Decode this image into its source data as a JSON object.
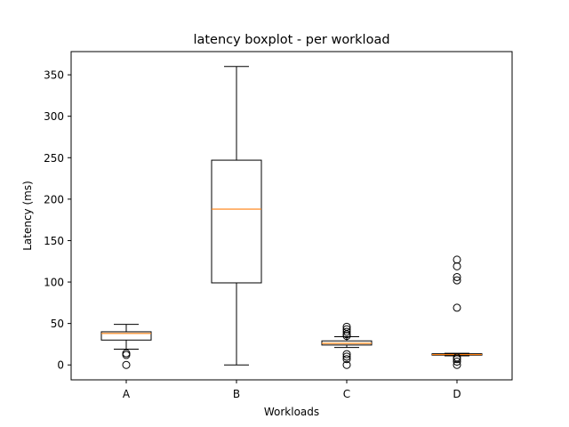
{
  "chart_data": {
    "type": "boxplot",
    "title": "latency boxplot - per workload",
    "xlabel": "Workloads",
    "ylabel": "Latency (ms)",
    "ylim": [
      -18,
      378
    ],
    "yticks": [
      0,
      50,
      100,
      150,
      200,
      250,
      300,
      350
    ],
    "ytick_labels": [
      "0",
      "50",
      "100",
      "150",
      "200",
      "250",
      "300",
      "350"
    ],
    "categories": [
      "A",
      "B",
      "C",
      "D"
    ],
    "grid": false,
    "colors": {
      "box": "#000000",
      "median": "#ff7f0e",
      "flier": "#000000"
    },
    "boxes": [
      {
        "category": "A",
        "whisker_low": 19,
        "q1": 30,
        "median": 38,
        "q3": 40,
        "whisker_high": 49,
        "outliers": [
          0,
          12,
          14
        ]
      },
      {
        "category": "B",
        "whisker_low": 0,
        "q1": 99,
        "median": 188,
        "q3": 247,
        "whisker_high": 360,
        "outliers": []
      },
      {
        "category": "C",
        "whisker_low": 21,
        "q1": 24,
        "median": 26,
        "q3": 29,
        "whisker_high": 34,
        "outliers": [
          0,
          7,
          10,
          13,
          35,
          37,
          40,
          43,
          46
        ]
      },
      {
        "category": "D",
        "whisker_low": 11,
        "q1": 11.8,
        "median": 12.5,
        "q3": 13.5,
        "whisker_high": 14,
        "outliers": [
          0,
          4,
          7,
          9,
          69,
          102,
          106,
          119,
          127
        ]
      }
    ]
  }
}
